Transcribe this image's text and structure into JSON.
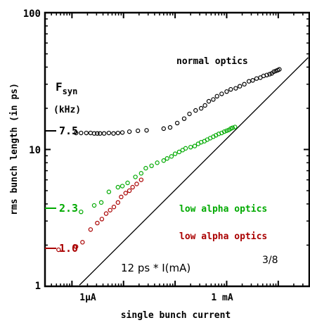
{
  "chart_data": {
    "type": "scatter",
    "title": "",
    "xlabel": "single bunch current",
    "ylabel": "rms bunch length (in ps)",
    "x_scale": "log",
    "y_scale": "log",
    "xlim_mA": [
      0.0003,
      40
    ],
    "ylim": [
      1,
      100
    ],
    "x_tick_labels": [
      {
        "value_mA": 0.001,
        "label": "1μA"
      },
      {
        "value_mA": 1,
        "label": "1 mA"
      }
    ],
    "y_tick_labels": [
      {
        "value": 1,
        "label": "1"
      },
      {
        "value": 10,
        "label": "10"
      },
      {
        "value": 100,
        "label": "100"
      }
    ],
    "fsyn_header": {
      "main": "F",
      "sub": "syn",
      "unit": "(kHz)"
    },
    "fsyn_levels": [
      {
        "label": "7.5",
        "y": 13.2,
        "color": "#000000"
      },
      {
        "label": "2.3",
        "y": 3.6,
        "color": "#00aa00"
      },
      {
        "label": "1.0",
        "y": 1.85,
        "color": "#aa0000"
      }
    ],
    "annotations": {
      "normal": "normal optics",
      "low_green": "low alpha optics",
      "low_red": "low alpha optics",
      "fit_text": "12 ps * I(mA)",
      "fit_exponent": "3/8"
    },
    "fit_line": {
      "coefficient_ps": 12,
      "exponent": 0.375,
      "color": "#000000"
    },
    "series": [
      {
        "color": "#000000",
        "marker": "circle",
        "points": [
          [
            0.0012,
            13.2
          ],
          [
            0.0015,
            13.2
          ],
          [
            0.0019,
            13.2
          ],
          [
            0.0023,
            13.2
          ],
          [
            0.0027,
            13.1
          ],
          [
            0.0031,
            13.1
          ],
          [
            0.0035,
            13.1
          ],
          [
            0.0042,
            13.1
          ],
          [
            0.0052,
            13.2
          ],
          [
            0.0064,
            13.1
          ],
          [
            0.0078,
            13.2
          ],
          [
            0.0095,
            13.3
          ],
          [
            0.013,
            13.5
          ],
          [
            0.019,
            13.7
          ],
          [
            0.028,
            13.8
          ],
          [
            0.06,
            14.2
          ],
          [
            0.08,
            14.5
          ],
          [
            0.11,
            15.6
          ],
          [
            0.15,
            16.8
          ],
          [
            0.19,
            18.2
          ],
          [
            0.25,
            19.3
          ],
          [
            0.32,
            20.0
          ],
          [
            0.38,
            21.0
          ],
          [
            0.45,
            22.5
          ],
          [
            0.55,
            23.2
          ],
          [
            0.65,
            24.5
          ],
          [
            0.8,
            25.5
          ],
          [
            1.0,
            26.5
          ],
          [
            1.2,
            27.5
          ],
          [
            1.5,
            28.0
          ],
          [
            1.8,
            29.0
          ],
          [
            2.2,
            30.0
          ],
          [
            2.7,
            31.5
          ],
          [
            3.2,
            32.0
          ],
          [
            3.8,
            33.0
          ],
          [
            4.5,
            33.5
          ],
          [
            5.2,
            34.5
          ],
          [
            6.0,
            35.0
          ],
          [
            6.8,
            35.5
          ],
          [
            7.5,
            36.0
          ],
          [
            8.2,
            37.0
          ],
          [
            9.0,
            37.5
          ],
          [
            9.8,
            38.0
          ],
          [
            10.5,
            38.5
          ]
        ]
      },
      {
        "color": "#00aa00",
        "marker": "circle",
        "points": [
          [
            0.0015,
            3.5
          ],
          [
            0.0027,
            3.9
          ],
          [
            0.0037,
            4.1
          ],
          [
            0.0052,
            4.9
          ],
          [
            0.0078,
            5.3
          ],
          [
            0.0095,
            5.4
          ],
          [
            0.012,
            5.7
          ],
          [
            0.017,
            6.3
          ],
          [
            0.022,
            6.7
          ],
          [
            0.027,
            7.3
          ],
          [
            0.035,
            7.6
          ],
          [
            0.045,
            8.0
          ],
          [
            0.06,
            8.3
          ],
          [
            0.07,
            8.6
          ],
          [
            0.085,
            8.9
          ],
          [
            0.1,
            9.3
          ],
          [
            0.12,
            9.6
          ],
          [
            0.14,
            9.9
          ],
          [
            0.16,
            10.2
          ],
          [
            0.2,
            10.4
          ],
          [
            0.24,
            10.6
          ],
          [
            0.28,
            11.0
          ],
          [
            0.32,
            11.3
          ],
          [
            0.37,
            11.5
          ],
          [
            0.42,
            11.8
          ],
          [
            0.48,
            12.1
          ],
          [
            0.55,
            12.4
          ],
          [
            0.62,
            12.7
          ],
          [
            0.7,
            13.0
          ],
          [
            0.8,
            13.2
          ],
          [
            0.9,
            13.5
          ],
          [
            1.0,
            13.7
          ],
          [
            1.1,
            13.9
          ],
          [
            1.2,
            14.2
          ],
          [
            1.3,
            14.4
          ],
          [
            1.45,
            14.6
          ]
        ]
      },
      {
        "color": "#aa0000",
        "marker": "circle",
        "points": [
          [
            0.00055,
            1.85
          ],
          [
            0.0012,
            1.95
          ],
          [
            0.0016,
            2.1
          ],
          [
            0.0023,
            2.6
          ],
          [
            0.0031,
            2.9
          ],
          [
            0.0038,
            3.1
          ],
          [
            0.0046,
            3.4
          ],
          [
            0.0055,
            3.6
          ],
          [
            0.0065,
            3.8
          ],
          [
            0.0078,
            4.1
          ],
          [
            0.009,
            4.5
          ],
          [
            0.011,
            4.8
          ],
          [
            0.013,
            5.0
          ],
          [
            0.015,
            5.3
          ],
          [
            0.018,
            5.6
          ],
          [
            0.022,
            6.0
          ]
        ]
      }
    ]
  }
}
